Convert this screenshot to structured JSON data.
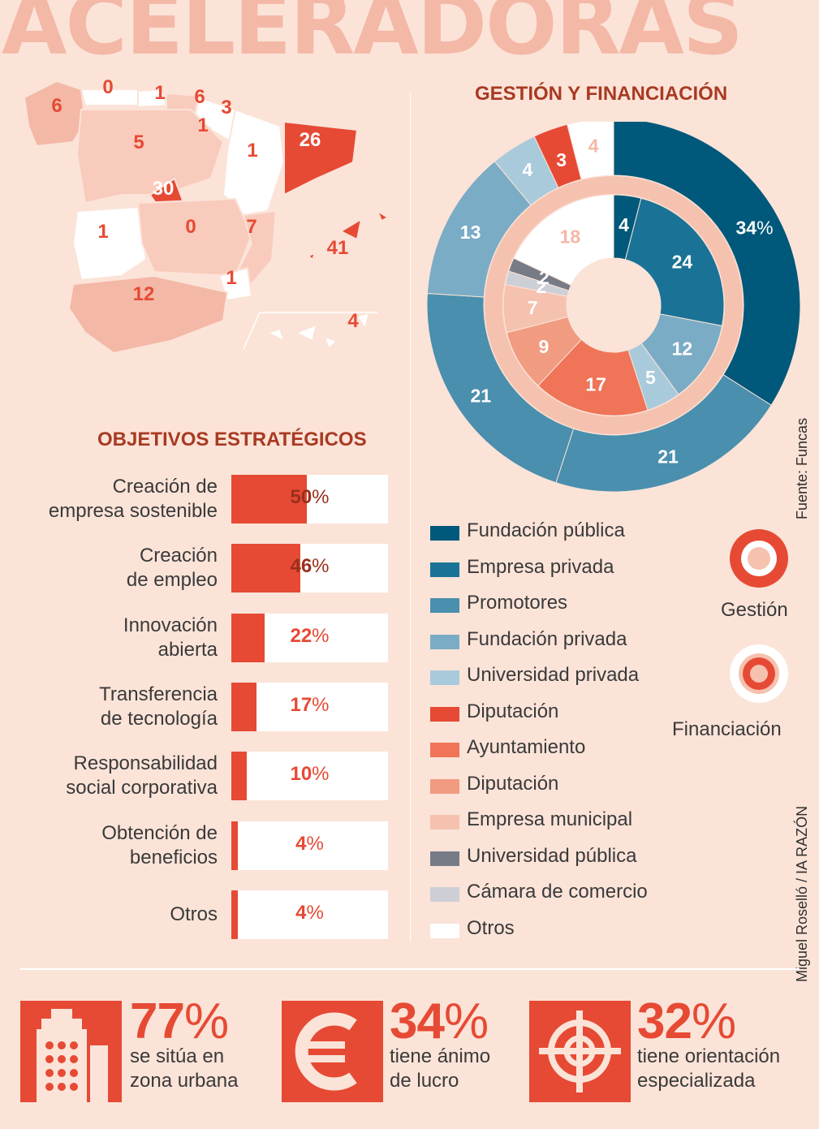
{
  "title": "ACELERADORAS",
  "map": {
    "values": [
      {
        "region": "Galicia",
        "value": "6"
      },
      {
        "region": "Asturias",
        "value": "0"
      },
      {
        "region": "Cantabria",
        "value": "1"
      },
      {
        "region": "País Vasco",
        "value": "6"
      },
      {
        "region": "Navarra",
        "value": "3"
      },
      {
        "region": "La Rioja",
        "value": "1"
      },
      {
        "region": "Castilla y León",
        "value": "5"
      },
      {
        "region": "Aragón",
        "value": "1"
      },
      {
        "region": "Cataluña",
        "value": "26"
      },
      {
        "region": "Madrid",
        "value": "30"
      },
      {
        "region": "Extremadura",
        "value": "1"
      },
      {
        "region": "Castilla-La Mancha",
        "value": "0"
      },
      {
        "region": "Comunidad Valenciana",
        "value": "7"
      },
      {
        "region": "Baleares",
        "value": "41"
      },
      {
        "region": "Murcia",
        "value": "1"
      },
      {
        "region": "Andalucía",
        "value": "12"
      },
      {
        "region": "Canarias",
        "value": "4"
      }
    ]
  },
  "gestion": {
    "title": "GESTIÓN Y FINANCIACIÓN",
    "source": "Fuente: Funcas",
    "credit": "Miguel Roselló / IA RAZÓN",
    "ring_labels": {
      "gestion": "Gestión",
      "financiacion": "Financiación"
    }
  },
  "legend": [
    {
      "label": "Fundación pública",
      "color": "#00587a"
    },
    {
      "label": "Empresa privada",
      "color": "#1a7396"
    },
    {
      "label": "Promotores",
      "color": "#4a8fad"
    },
    {
      "label": "Fundación privada",
      "color": "#7bacc5"
    },
    {
      "label": "Universidad privada",
      "color": "#a9cadb"
    },
    {
      "label": "Diputación",
      "color": "#e64a34"
    },
    {
      "label": "Ayuntamiento",
      "color": "#ef7458"
    },
    {
      "label": "Diputación",
      "color": "#f19b80"
    },
    {
      "label": "Empresa municipal",
      "color": "#f6c2b0"
    },
    {
      "label": "Universidad pública",
      "color": "#767b86"
    },
    {
      "label": "Cámara de comercio",
      "color": "#cdcfd6"
    },
    {
      "label": "Otros",
      "color": "#ffffff"
    }
  ],
  "objetivos": {
    "title": "OBJETIVOS ESTRATÉGICOS",
    "items": [
      {
        "label": "Creación de\nempresa sostenible",
        "num": "50",
        "pct": "%"
      },
      {
        "label": "Creación\nde empleo",
        "num": "46",
        "pct": "%"
      },
      {
        "label": "Innovación\nabierta",
        "num": "22",
        "pct": "%"
      },
      {
        "label": "Transferencia\nde tecnología",
        "num": "17",
        "pct": "%"
      },
      {
        "label": "Responsabilidad\nsocial corporativa",
        "num": "10",
        "pct": "%"
      },
      {
        "label": "Obtención de\nbeneficios",
        "num": "4",
        "pct": "%"
      },
      {
        "label": "Otros",
        "num": "4",
        "pct": "%"
      }
    ]
  },
  "stats": [
    {
      "num": "77",
      "pct": "%",
      "text": "se sitúa en\nzona urbana",
      "icon": "building-icon"
    },
    {
      "num": "34",
      "pct": "%",
      "text": "tiene ánimo\nde lucro",
      "icon": "euro-icon"
    },
    {
      "num": "32",
      "pct": "%",
      "text": "tiene orientación\nespecializada",
      "icon": "target-icon"
    }
  ],
  "chart_data": [
    {
      "type": "bar",
      "title": "OBJETIVOS ESTRATÉGICOS",
      "categories": [
        "Creación de empresa sostenible",
        "Creación de empleo",
        "Innovación abierta",
        "Transferencia de tecnología",
        "Responsabilidad social corporativa",
        "Obtención de beneficios",
        "Otros"
      ],
      "values": [
        50,
        46,
        22,
        17,
        10,
        4,
        4
      ],
      "ylim": [
        0,
        100
      ],
      "unit": "%"
    },
    {
      "type": "pie",
      "title": "GESTIÓN Y FINANCIACIÓN",
      "series": [
        {
          "name": "Gestión",
          "slices": [
            {
              "label": "Fundación pública",
              "value": 34,
              "color": "#00587a",
              "text": "34",
              "pct": "%"
            },
            {
              "label": "Promotores",
              "value": 21,
              "color": "#4a8fad",
              "text": "21",
              "pct": ""
            },
            {
              "label": "Promotores",
              "value": 21,
              "color": "#4a8fad",
              "text": "21",
              "pct": ""
            },
            {
              "label": "Fundación privada",
              "value": 13,
              "color": "#7bacc5",
              "text": "13",
              "pct": ""
            },
            {
              "label": "Universidad privada",
              "value": 4,
              "color": "#a9cadb",
              "text": "4",
              "pct": ""
            },
            {
              "label": "Diputación",
              "value": 3,
              "color": "#e64a34",
              "text": "3",
              "pct": ""
            },
            {
              "label": "Otros",
              "value": 4,
              "color": "#ffffff",
              "text": "4",
              "pct": ""
            }
          ]
        },
        {
          "name": "Financiación",
          "slices": [
            {
              "label": "Fundación pública",
              "value": 4,
              "color": "#00587a",
              "text": "4",
              "pct": ""
            },
            {
              "label": "Empresa privada",
              "value": 24,
              "color": "#1a7396",
              "text": "24",
              "pct": ""
            },
            {
              "label": "Fundación privada",
              "value": 12,
              "color": "#7bacc5",
              "text": "12",
              "pct": ""
            },
            {
              "label": "Universidad privada",
              "value": 5,
              "color": "#a9cadb",
              "text": "5",
              "pct": ""
            },
            {
              "label": "Ayuntamiento",
              "value": 17,
              "color": "#ef7458",
              "text": "17",
              "pct": ""
            },
            {
              "label": "Diputación",
              "value": 9,
              "color": "#f19b80",
              "text": "9",
              "pct": ""
            },
            {
              "label": "Empresa municipal",
              "value": 7,
              "color": "#f6c2b0",
              "text": "7",
              "pct": ""
            },
            {
              "label": "Cámara de comercio",
              "value": 2,
              "color": "#cdcfd6",
              "text": "2",
              "pct": ""
            },
            {
              "label": "Universidad pública",
              "value": 2,
              "color": "#767b86",
              "text": "2",
              "pct": ""
            },
            {
              "label": "Otros",
              "value": 18,
              "color": "#ffffff",
              "text": "18",
              "pct": ""
            }
          ]
        }
      ]
    }
  ]
}
